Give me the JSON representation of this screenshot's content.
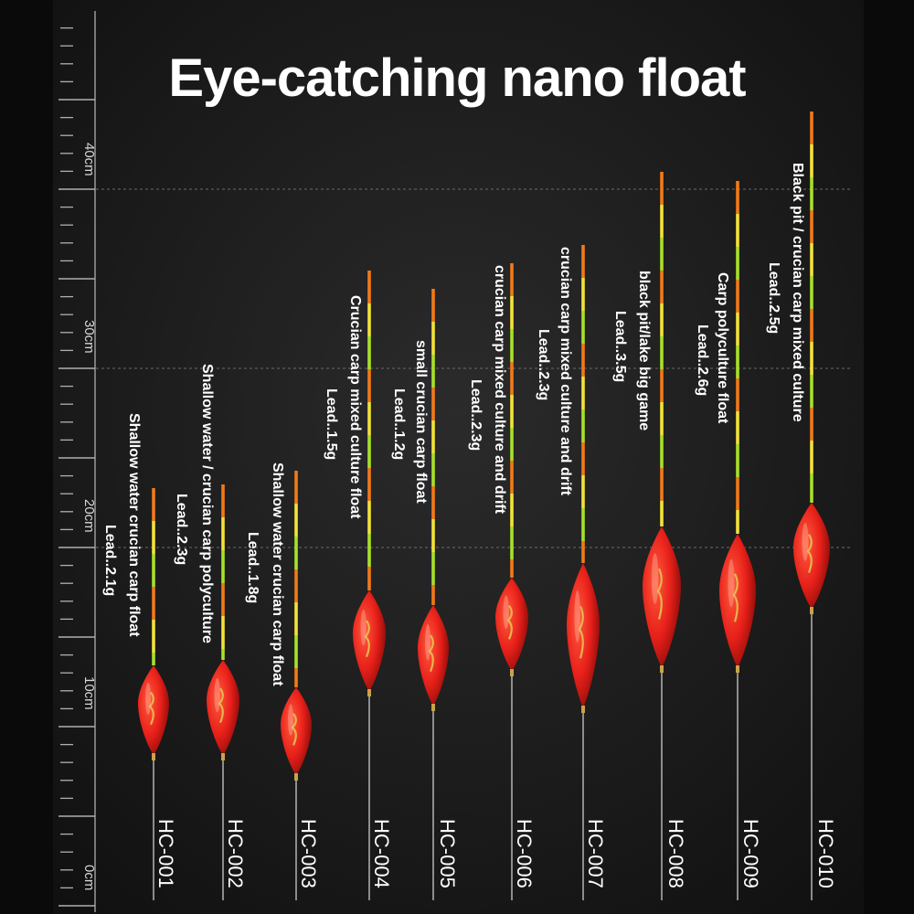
{
  "title": "Eye-catching nano float",
  "ruler_labels": [
    "40cm",
    "30cm",
    "20cm",
    "10cm",
    "0cm"
  ],
  "colors": {
    "background": "#1b1b1b",
    "float_body": "#e8201a",
    "tip_orange": "#f07a1a",
    "tip_green": "#a8e02a",
    "tip_yellow": "#f2e23a",
    "text": "#ffffff"
  },
  "floats": [
    {
      "model": "HC-001",
      "name": "Shallow water crucian carp float",
      "lead": "Lead..2.1g"
    },
    {
      "model": "HC-002",
      "name": "Shallow water / crucian carp polyculture",
      "lead": "Lead..2.3g"
    },
    {
      "model": "HC-003",
      "name": "Shallow water crucian carp float",
      "lead": "Lead..1.8g"
    },
    {
      "model": "HC-004",
      "name": "Crucian carp mixed culture float",
      "lead": "Lead..1.5g"
    },
    {
      "model": "HC-005",
      "name": "small crucian carp float",
      "lead": "Lead..1.2g"
    },
    {
      "model": "HC-006",
      "name": "crucian carp mixed culture and drift",
      "lead": "Lead..2.3g"
    },
    {
      "model": "HC-007",
      "name": "crucian carp mixed culture and drift",
      "lead": "Lead..2.3g"
    },
    {
      "model": "HC-008",
      "name": "black pit/lake big game",
      "lead": "Lead..3.5g"
    },
    {
      "model": "HC-009",
      "name": "Carp polyculture float",
      "lead": "Lead..2.6g"
    },
    {
      "model": "HC-010",
      "name": "Black pit / crucian carp mixed culture",
      "lead": "Lead..2.5g"
    }
  ]
}
